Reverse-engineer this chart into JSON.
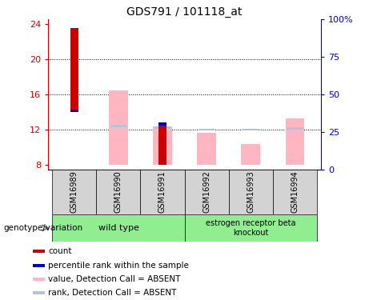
{
  "title": "GDS791 / 101118_at",
  "samples": [
    "GSM16989",
    "GSM16990",
    "GSM16991",
    "GSM16992",
    "GSM16993",
    "GSM16994"
  ],
  "ylim_left": [
    7.5,
    24.5
  ],
  "ylim_right": [
    0,
    100
  ],
  "yticks_left": [
    8,
    12,
    16,
    20,
    24
  ],
  "yticks_right": [
    0,
    25,
    50,
    75,
    100
  ],
  "yticklabels_right": [
    "0",
    "25",
    "50",
    "75",
    "100%"
  ],
  "grid_yticks": [
    12,
    16,
    20
  ],
  "red_bars": [
    [
      14.0,
      23.5
    ],
    [],
    [
      8.0,
      12.5
    ],
    [],
    [],
    []
  ],
  "blue_bars": [
    [
      14.0,
      14.3
    ],
    [],
    [
      12.5,
      12.8
    ],
    [],
    [],
    []
  ],
  "pink_bars": [
    [],
    [
      8.0,
      16.5
    ],
    [
      8.0,
      12.4
    ],
    [
      8.0,
      11.7
    ],
    [
      8.0,
      10.4
    ],
    [
      8.0,
      13.3
    ]
  ],
  "lightblue_bars": [
    [],
    [
      12.3,
      12.6
    ],
    [
      12.1,
      12.4
    ],
    [
      11.95,
      12.15
    ],
    [
      11.9,
      12.1
    ],
    [
      12.0,
      12.3
    ]
  ],
  "red_color": "#cc0000",
  "blue_color": "#0000cc",
  "pink_color": "#ffb6c1",
  "lightblue_color": "#b0c4de",
  "left_axis_color": "#cc0000",
  "right_axis_color": "#0000cc",
  "group_green": "#90ee90",
  "gray_bg": "#d3d3d3",
  "wt_label": "wild type",
  "ko_label": "estrogen receptor beta\nknockout",
  "geno_label": "genotype/variation",
  "legend_items": [
    {
      "label": "count",
      "color": "#cc0000"
    },
    {
      "label": "percentile rank within the sample",
      "color": "#0000cc"
    },
    {
      "label": "value, Detection Call = ABSENT",
      "color": "#ffb6c1"
    },
    {
      "label": "rank, Detection Call = ABSENT",
      "color": "#b0c4de"
    }
  ],
  "figsize": [
    4.61,
    3.75
  ],
  "dpi": 100
}
